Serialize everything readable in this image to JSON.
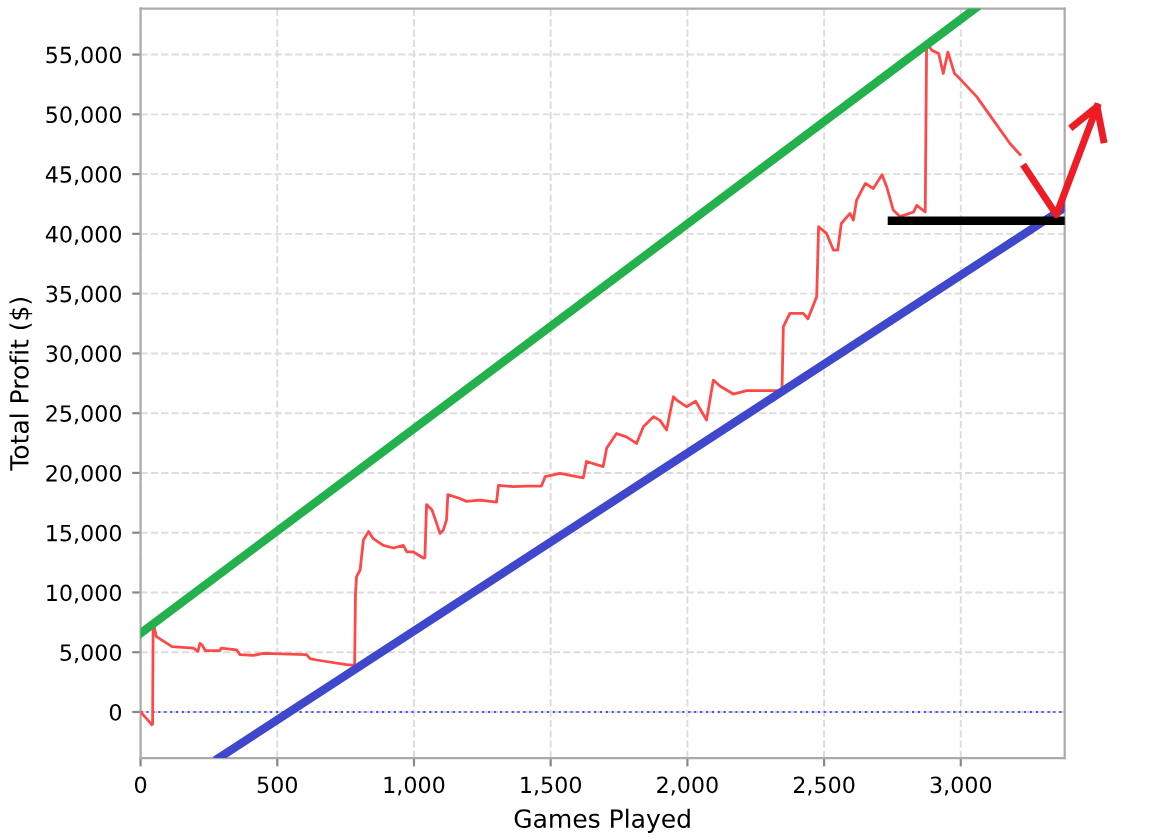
{
  "chart_data": {
    "type": "line",
    "xlabel": "Games Played",
    "ylabel": "Total Profit ($)",
    "xlim": [
      0,
      3380
    ],
    "ylim": [
      -3850,
      58850
    ],
    "xticks": [
      0,
      500,
      {
        "value": 1000,
        "label": "1,000"
      },
      {
        "value": 1500,
        "label": "1,500"
      },
      {
        "value": 2000,
        "label": "2,000"
      },
      {
        "value": 2500,
        "label": "2,500"
      },
      {
        "value": 3000,
        "label": "3,000"
      }
    ],
    "yticks": [
      0,
      {
        "value": 5000,
        "label": "5,000"
      },
      {
        "value": 10000,
        "label": "10,000"
      },
      {
        "value": 15000,
        "label": "15,000"
      },
      {
        "value": 20000,
        "label": "20,000"
      },
      {
        "value": 25000,
        "label": "25,000"
      },
      {
        "value": 30000,
        "label": "30,000"
      },
      {
        "value": 35000,
        "label": "35,000"
      },
      {
        "value": 40000,
        "label": "40,000"
      },
      {
        "value": 45000,
        "label": "45,000"
      },
      {
        "value": 50000,
        "label": "50,000"
      },
      {
        "value": 55000,
        "label": "55,000"
      }
    ],
    "grid": true,
    "line_style": "solid",
    "ref_lines": [
      {
        "axis": "y",
        "value": 0,
        "color": "#5050ff",
        "line_style": "dotted"
      }
    ],
    "series": [
      {
        "color": "#ff4848",
        "x": [
          0,
          22,
          41,
          44,
          46,
          58,
          115,
          193,
          210,
          217,
          225,
          237,
          290,
          295,
          351,
          364,
          413,
          449,
          607,
          620,
          644,
          753,
          783,
          786,
          790,
          803,
          815,
          834,
          851,
          888,
          925,
          961,
          974,
          998,
          1034,
          1040,
          1046,
          1066,
          1083,
          1095,
          1107,
          1119,
          1124,
          1168,
          1192,
          1241,
          1302,
          1309,
          1363,
          1412,
          1466,
          1480,
          1534,
          1619,
          1631,
          1692,
          1705,
          1741,
          1777,
          1814,
          1839,
          1876,
          1900,
          1924,
          1936,
          1949,
          1961,
          1997,
          2030,
          2070,
          2095,
          2119,
          2168,
          2217,
          2314,
          2346,
          2351,
          2375,
          2424,
          2441,
          2473,
          2480,
          2509,
          2534,
          2550,
          2563,
          2595,
          2607,
          2619,
          2651,
          2680,
          2712,
          2729,
          2753,
          2778,
          2827,
          2839,
          2870,
          2875,
          2894,
          2919,
          2936,
          2953,
          2977,
          2997,
          3058,
          3119,
          3180,
          3217
        ],
        "values": [
          0,
          -560,
          -1060,
          -1000,
          7420,
          6300,
          5470,
          5350,
          5080,
          5740,
          5600,
          5130,
          5130,
          5350,
          5190,
          4800,
          4740,
          4910,
          4800,
          4460,
          4350,
          3960,
          3900,
          9920,
          11320,
          11880,
          14390,
          15110,
          14500,
          13940,
          13720,
          13940,
          13390,
          13390,
          12880,
          12900,
          17350,
          16900,
          15780,
          14940,
          15210,
          16060,
          18190,
          17860,
          17620,
          17730,
          17560,
          18960,
          18850,
          18900,
          18900,
          19690,
          19970,
          19580,
          20960,
          20530,
          22080,
          23300,
          23020,
          22470,
          23870,
          24700,
          24400,
          23590,
          24980,
          26380,
          26100,
          25540,
          26000,
          24430,
          27770,
          27270,
          26600,
          26880,
          26880,
          26880,
          32240,
          33350,
          33350,
          32900,
          34750,
          40600,
          40040,
          38650,
          38650,
          40870,
          41710,
          41150,
          42830,
          44220,
          43800,
          44950,
          43950,
          41990,
          41440,
          41830,
          42380,
          41830,
          55930,
          55370,
          55100,
          53420,
          55210,
          53420,
          52970,
          51480,
          49520,
          47560,
          46630
        ]
      },
      {
        "color": "#22b14c",
        "x": [
          0,
          3052
        ],
        "values": [
          6580,
          58850
        ]
      },
      {
        "color": "#3f48cc",
        "x": [
          286,
          3380
        ],
        "values": [
          -3850,
          42200
        ]
      },
      {
        "color": "#000000",
        "x": [
          2748,
          3380
        ],
        "values": [
          41100,
          41100
        ]
      }
    ]
  }
}
